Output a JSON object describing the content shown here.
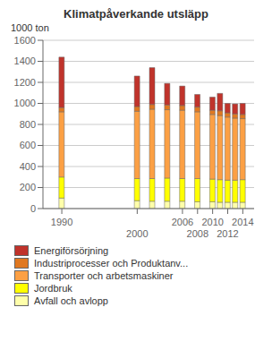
{
  "chart_data": {
    "type": "bar",
    "stacked": true,
    "title": "Klimatpåverkande utsläpp",
    "ylabel": "1000 ton",
    "x": [
      1990,
      2000,
      2002,
      2004,
      2006,
      2008,
      2010,
      2011,
      2012,
      2013,
      2014
    ],
    "series": [
      {
        "name": "Avfall och avlopp",
        "color": "#ffffaa",
        "values": [
          100,
          75,
          70,
          70,
          70,
          65,
          65,
          60,
          60,
          60,
          60
        ]
      },
      {
        "name": "Jordbruk",
        "color": "#ffff00",
        "values": [
          200,
          210,
          215,
          220,
          215,
          220,
          215,
          215,
          210,
          210,
          215
        ]
      },
      {
        "name": "Transporter och arbetsmaskiner",
        "color": "#fca044",
        "values": [
          620,
          640,
          660,
          650,
          650,
          635,
          615,
          610,
          600,
          590,
          580
        ]
      },
      {
        "name": "Industriprocesser och Produktanv...",
        "color": "#e07820",
        "values": [
          40,
          45,
          45,
          45,
          45,
          45,
          40,
          45,
          40,
          40,
          40
        ]
      },
      {
        "name": "Energiförsörjning",
        "color": "#c0332b",
        "values": [
          480,
          290,
          350,
          205,
          185,
          120,
          125,
          165,
          90,
          95,
          105
        ]
      }
    ],
    "xlim": [
      1987.5,
      2015.5
    ],
    "xticks": [
      1990,
      2000,
      2006,
      2008,
      2010,
      2012,
      2014
    ],
    "ylim": [
      0,
      1600
    ],
    "yticks": [
      0,
      200,
      400,
      600,
      800,
      1000,
      1200,
      1400,
      1600
    ],
    "grid": true,
    "legend": "lower left"
  }
}
